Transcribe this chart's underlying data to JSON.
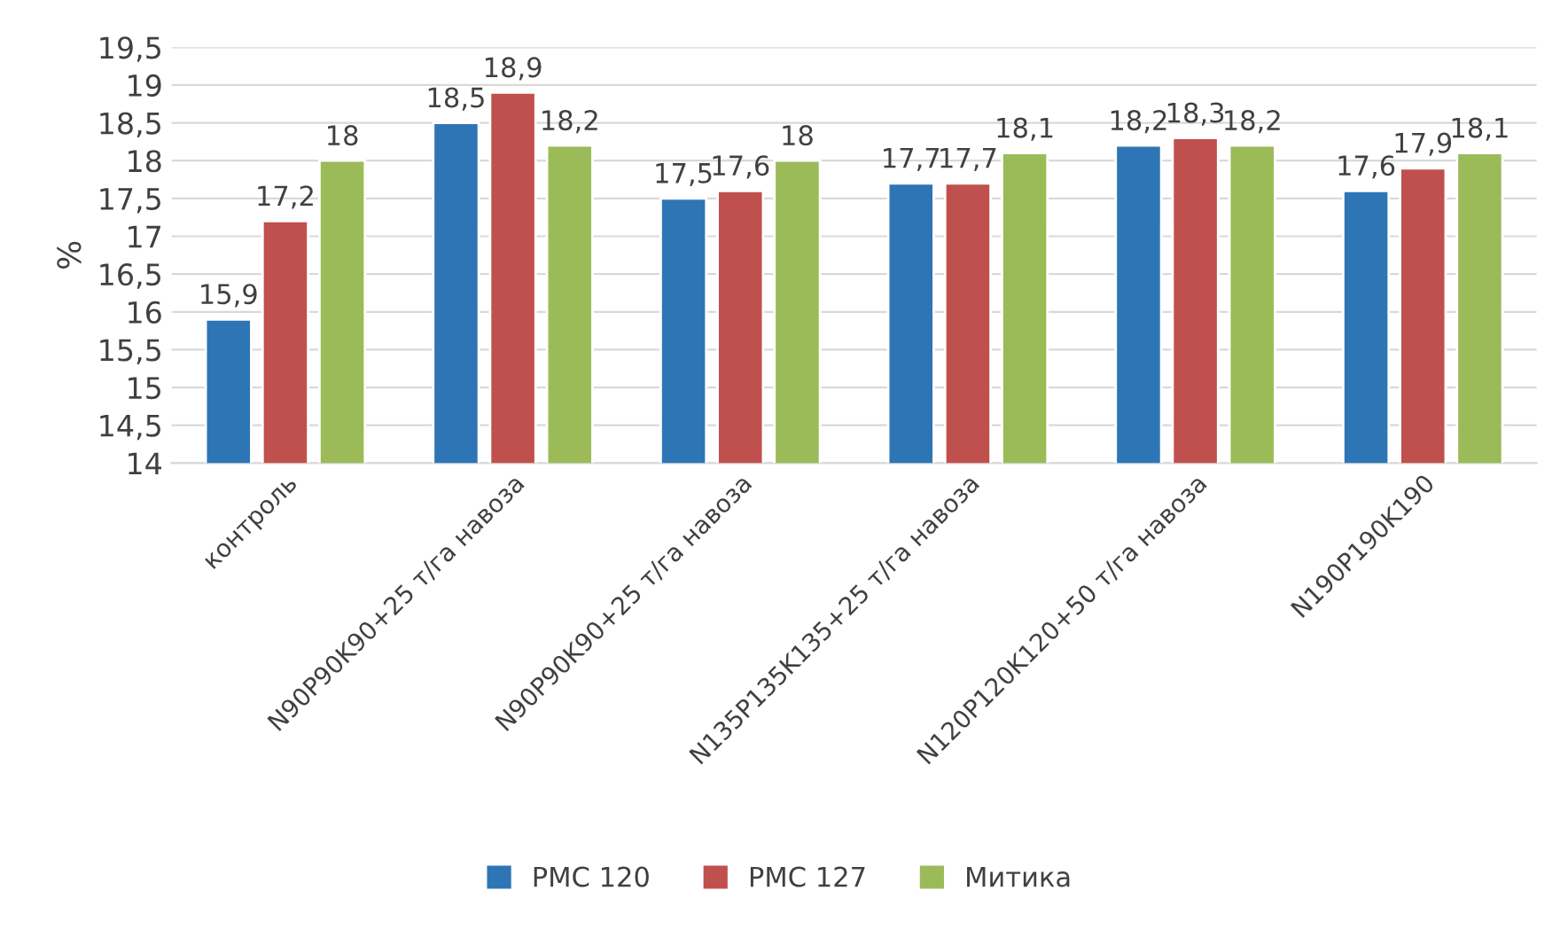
{
  "chart_data": {
    "type": "bar",
    "ylabel": "%",
    "categories": [
      "контроль",
      "N90P90K90+25 т/га навоза",
      "N90P90K90+25 т/га навоза",
      "N135P135K135+25 т/га навоза",
      "N120P120K120+50 т/га навоза",
      "N190P190K190"
    ],
    "series": [
      {
        "name": "РМС 120",
        "color": "#2e75b6",
        "values": [
          15.9,
          18.5,
          17.5,
          17.7,
          18.2,
          17.6
        ],
        "value_labels": [
          "15,9",
          "18,5",
          "17,5",
          "17,7",
          "18,2",
          "17,6"
        ]
      },
      {
        "name": "РМС 127",
        "color": "#c0504d",
        "values": [
          17.2,
          18.9,
          17.6,
          17.7,
          18.3,
          17.9
        ],
        "value_labels": [
          "17,2",
          "18,9",
          "17,6",
          "17,7",
          "18,3",
          "17,9"
        ]
      },
      {
        "name": "Митика",
        "color": "#9bbb59",
        "values": [
          18,
          18.2,
          18,
          18.1,
          18.2,
          18.1
        ],
        "value_labels": [
          "18",
          "18,2",
          "18",
          "18,1",
          "18,2",
          "18,1"
        ]
      }
    ],
    "ylim": [
      14,
      19.5
    ],
    "yticks": [
      14,
      {
        "value": 14.5,
        "label": "14,5"
      },
      15,
      {
        "value": 15.5,
        "label": "15,5"
      },
      16,
      {
        "value": 16.5,
        "label": "16,5"
      },
      17,
      {
        "value": 17.5,
        "label": "17,5"
      },
      18,
      {
        "value": 18.5,
        "label": "18,5"
      },
      19,
      {
        "value": 19.5,
        "label": "19,5"
      }
    ],
    "grid": "y",
    "legend": "bottom"
  }
}
